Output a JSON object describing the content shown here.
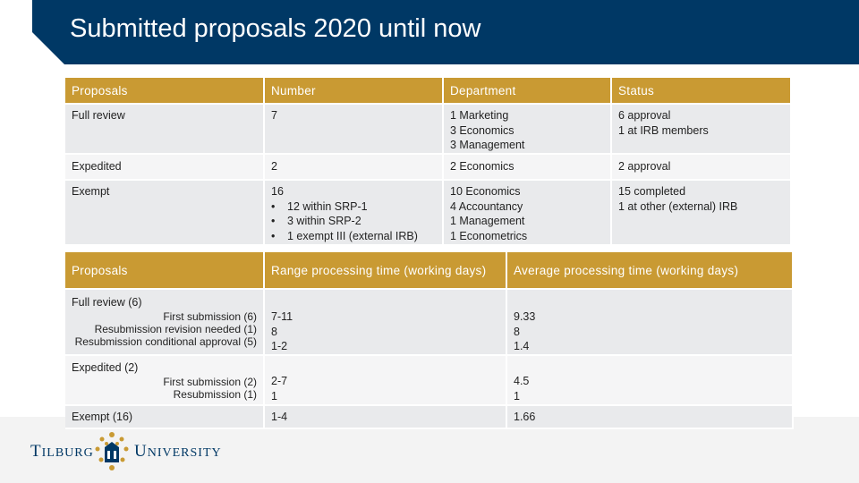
{
  "header": {
    "title": "Submitted proposals 2020 until now"
  },
  "table1": {
    "headers": [
      "Proposals",
      "Number",
      "Department",
      "Status"
    ],
    "rows": [
      {
        "proposals": "Full review",
        "number": [
          "7"
        ],
        "department": [
          "1 Marketing",
          "3 Economics",
          "3 Management"
        ],
        "status": [
          "6 approval",
          "1 at IRB members"
        ]
      },
      {
        "proposals": "Expedited",
        "number": [
          "2"
        ],
        "department": [
          "2 Economics"
        ],
        "status": [
          "2 approval"
        ]
      },
      {
        "proposals": "Exempt",
        "number": [
          "16"
        ],
        "number_bullets": [
          "12 within SRP-1",
          "3 within SRP-2",
          "1 exempt III (external IRB)"
        ],
        "department": [
          "10 Economics",
          "4 Accountancy",
          "1 Management",
          "1 Econometrics"
        ],
        "status": [
          "15 completed",
          "1 at other (external) IRB"
        ]
      }
    ]
  },
  "table2": {
    "headers": [
      "Proposals",
      "Range processing time (working days)",
      "Average processing time (working days)"
    ],
    "groups": [
      {
        "label": "Full review (6)",
        "subs": [
          "First submission (6)",
          "Resubmission revision needed (1)",
          "Resubmission conditional approval (5)"
        ],
        "range": [
          "7-11",
          "8",
          "1-2"
        ],
        "avg": [
          "9.33",
          "8",
          "1.4"
        ]
      },
      {
        "label": "Expedited (2)",
        "subs": [
          "First submission (2)",
          "Resubmission (1)"
        ],
        "range": [
          "2-7",
          "1"
        ],
        "avg": [
          "4.5",
          "1"
        ]
      },
      {
        "label": "Exempt (16)",
        "subs": [],
        "range": [
          "1-4"
        ],
        "avg": [
          "1.66"
        ]
      }
    ]
  },
  "logo": {
    "left_cap": "T",
    "left_rest": "ILBURG",
    "right_cap": "U",
    "right_rest": "NIVERSITY"
  },
  "colors": {
    "header_bg": "#003865",
    "table_header": "#c99a33",
    "row_odd": "#e9eaec",
    "row_even": "#f5f5f6"
  }
}
